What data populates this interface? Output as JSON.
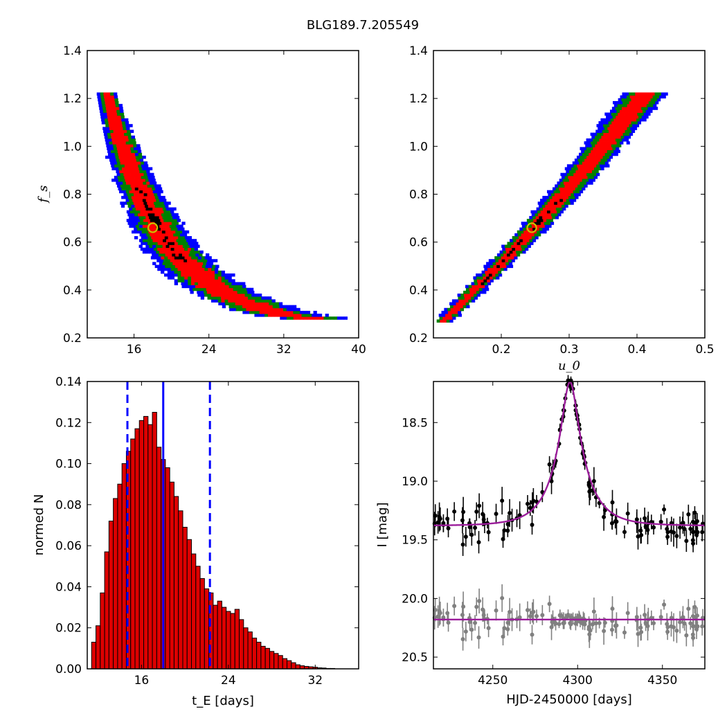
{
  "title": "BLG189.7.205549",
  "colors": {
    "level1": "#0000ff",
    "level2": "#008000",
    "level3": "#ff0000",
    "best": "#000000",
    "marker": "#c8c800",
    "hist_fill": "#dd0000",
    "fit_line": "#9b1d9b",
    "data_main": "#000000",
    "data_resid": "#808080",
    "vline": "#0000ff"
  },
  "chart_data": [
    {
      "type": "heatmap",
      "panel": "fs_vs_tE",
      "xlabel": "",
      "ylabel": "f_s",
      "xlim": [
        11,
        40
      ],
      "ylim": [
        0.2,
        1.4
      ],
      "xticks": [
        "16",
        "24",
        "32",
        "40"
      ],
      "yticks": [
        "0.2",
        "0.4",
        "0.6",
        "0.8",
        "1.0",
        "1.2",
        "1.4"
      ],
      "band_center": [
        [
          12.9,
          1.22
        ],
        [
          14.0,
          1.07
        ],
        [
          15.0,
          0.95
        ],
        [
          16.0,
          0.85
        ],
        [
          17.0,
          0.77
        ],
        [
          18.0,
          0.69
        ],
        [
          19.0,
          0.62
        ],
        [
          20.0,
          0.56
        ],
        [
          22.0,
          0.48
        ],
        [
          24.0,
          0.42
        ],
        [
          26.0,
          0.37
        ],
        [
          28.0,
          0.34
        ],
        [
          30.0,
          0.31
        ],
        [
          32.0,
          0.29
        ],
        [
          34.0,
          0.28
        ],
        [
          36.0,
          0.27
        ]
      ],
      "marker": [
        18.0,
        0.66
      ]
    },
    {
      "type": "heatmap",
      "panel": "fs_vs_u0",
      "xlabel": "u_0",
      "ylabel": "",
      "xlim": [
        0.1,
        0.5
      ],
      "ylim": [
        0.2,
        1.4
      ],
      "xticks": [
        "0.2",
        "0.3",
        "0.4",
        "0.5"
      ],
      "yticks": [
        "0.2",
        "0.4",
        "0.6",
        "0.8",
        "1.0",
        "1.2",
        "1.4"
      ],
      "band_center": [
        [
          0.115,
          0.27
        ],
        [
          0.41,
          1.22
        ]
      ],
      "marker": [
        0.245,
        0.66
      ]
    },
    {
      "type": "bar",
      "panel": "tE_histogram",
      "xlabel": "t_E [days]",
      "ylabel": "normed N",
      "xlim": [
        11,
        36
      ],
      "ylim": [
        0,
        0.14
      ],
      "xticks": [
        "16",
        "24",
        "32"
      ],
      "yticks": [
        "0.00",
        "0.02",
        "0.04",
        "0.06",
        "0.08",
        "0.10",
        "0.12",
        "0.14"
      ],
      "bin_start": 11.4,
      "bin_width": 0.4,
      "values": [
        0.013,
        0.021,
        0.037,
        0.057,
        0.072,
        0.083,
        0.09,
        0.1,
        0.106,
        0.112,
        0.117,
        0.121,
        0.123,
        0.119,
        0.125,
        0.108,
        0.102,
        0.098,
        0.091,
        0.084,
        0.077,
        0.069,
        0.063,
        0.056,
        0.05,
        0.044,
        0.039,
        0.037,
        0.031,
        0.033,
        0.03,
        0.028,
        0.027,
        0.029,
        0.024,
        0.02,
        0.018,
        0.015,
        0.013,
        0.011,
        0.01,
        0.0085,
        0.0075,
        0.0065,
        0.005,
        0.004,
        0.003,
        0.002,
        0.0015,
        0.0012,
        0.001,
        0.0008,
        0.0005,
        0.0004,
        0.0002,
        0.0002
      ],
      "vlines": {
        "median": 18.0,
        "low": 14.7,
        "high": 22.3
      }
    },
    {
      "type": "scatter",
      "panel": "light_curve",
      "xlabel": "HJD-2450000 [days]",
      "ylabel": "I [mag]",
      "xlim": [
        4215,
        4375
      ],
      "ylim": [
        20.6,
        18.15
      ],
      "xticks": [
        "4250",
        "4300",
        "4350"
      ],
      "yticks": [
        "18.5",
        "19.0",
        "19.5",
        "20.0",
        "20.5"
      ],
      "model": {
        "t0": 4295.5,
        "tE": 18.0,
        "u0": 0.245,
        "fs": 0.66,
        "base_mag": 19.38
      },
      "resid_offset": 20.18
    }
  ]
}
